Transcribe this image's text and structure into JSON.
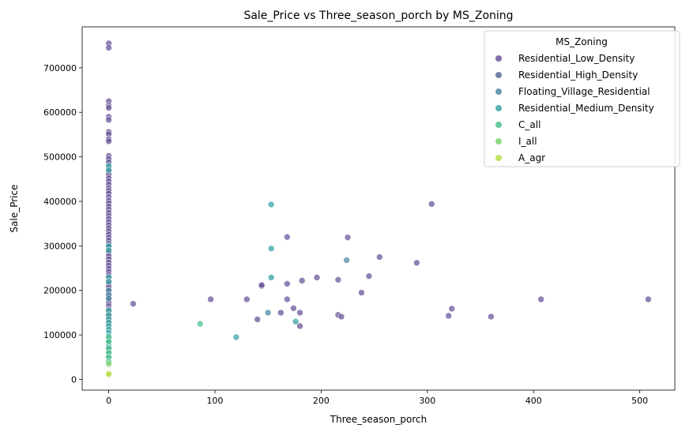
{
  "chart_data": {
    "type": "scatter",
    "title": "Sale_Price vs Three_season_porch by MS_Zoning",
    "xlabel": "Three_season_porch",
    "ylabel": "Sale_Price",
    "xlim": [
      -25,
      533
    ],
    "ylim": [
      -24000,
      792000
    ],
    "xticks": [
      0,
      100,
      200,
      300,
      400,
      500
    ],
    "yticks": [
      0,
      100000,
      200000,
      300000,
      400000,
      500000,
      600000,
      700000
    ],
    "grid": false,
    "legend": {
      "title": "MS_Zoning",
      "position": "top-right"
    },
    "series": [
      {
        "name": "Residential_Low_Density",
        "color": "#6b5599",
        "points": [
          [
            0,
            755000
          ],
          [
            0,
            745000
          ],
          [
            0,
            625000
          ],
          [
            0,
            615000
          ],
          [
            0,
            610000
          ],
          [
            0,
            590000
          ],
          [
            0,
            583000
          ],
          [
            0,
            556000
          ],
          [
            0,
            551000
          ],
          [
            0,
            540000
          ],
          [
            0,
            535000
          ],
          [
            0,
            502000
          ],
          [
            0,
            495000
          ],
          [
            0,
            488000
          ],
          [
            0,
            475000
          ],
          [
            0,
            466000
          ],
          [
            0,
            460000
          ],
          [
            0,
            452000
          ],
          [
            0,
            445000
          ],
          [
            0,
            438000
          ],
          [
            0,
            430000
          ],
          [
            0,
            424000
          ],
          [
            0,
            418000
          ],
          [
            0,
            410000
          ],
          [
            0,
            402000
          ],
          [
            0,
            396000
          ],
          [
            0,
            389000
          ],
          [
            0,
            382000
          ],
          [
            0,
            375000
          ],
          [
            0,
            368000
          ],
          [
            0,
            361000
          ],
          [
            0,
            354000
          ],
          [
            0,
            347000
          ],
          [
            0,
            340000
          ],
          [
            0,
            333000
          ],
          [
            0,
            326000
          ],
          [
            0,
            319000
          ],
          [
            0,
            312000
          ],
          [
            0,
            305000
          ],
          [
            0,
            298000
          ],
          [
            0,
            291000
          ],
          [
            0,
            284000
          ],
          [
            0,
            277000
          ],
          [
            0,
            270000
          ],
          [
            0,
            263000
          ],
          [
            0,
            256000
          ],
          [
            0,
            249000
          ],
          [
            0,
            242000
          ],
          [
            0,
            235000
          ],
          [
            0,
            228000
          ],
          [
            0,
            221000
          ],
          [
            0,
            214000
          ],
          [
            0,
            207000
          ],
          [
            0,
            200000
          ],
          [
            0,
            193000
          ],
          [
            0,
            186000
          ],
          [
            0,
            179000
          ],
          [
            0,
            172000
          ],
          [
            0,
            165000
          ],
          [
            0,
            158000
          ],
          [
            0,
            151000
          ],
          [
            0,
            144000
          ],
          [
            0,
            137000
          ],
          [
            0,
            130000
          ],
          [
            23,
            170000
          ],
          [
            96,
            180000
          ],
          [
            130,
            180000
          ],
          [
            140,
            135000
          ],
          [
            144,
            210000
          ],
          [
            144,
            212000
          ],
          [
            162,
            150000
          ],
          [
            168,
            320000
          ],
          [
            168,
            215000
          ],
          [
            168,
            180000
          ],
          [
            174,
            160000
          ],
          [
            180,
            150000
          ],
          [
            180,
            120000
          ],
          [
            182,
            222000
          ],
          [
            196,
            229000
          ],
          [
            216,
            224000
          ],
          [
            216,
            145000
          ],
          [
            219,
            141000
          ],
          [
            225,
            319000
          ],
          [
            245,
            232000
          ],
          [
            238,
            195000
          ],
          [
            255,
            275000
          ],
          [
            290,
            262000
          ],
          [
            304,
            394000
          ],
          [
            320,
            143000
          ],
          [
            323,
            159000
          ],
          [
            360,
            141000
          ],
          [
            407,
            180000
          ],
          [
            508,
            180000
          ]
        ]
      },
      {
        "name": "Residential_High_Density",
        "color": "#5a6d98",
        "points": [
          [
            0,
            140000
          ],
          [
            0,
            125000
          ]
        ]
      },
      {
        "name": "Floating_Village_Residential",
        "color": "#4d8aa6",
        "points": [
          [
            0,
            200000
          ],
          [
            0,
            190000
          ],
          [
            0,
            182000
          ],
          [
            224,
            268000
          ],
          [
            150,
            150000
          ]
        ]
      },
      {
        "name": "Residential_Medium_Density",
        "color": "#3aa3a3",
        "points": [
          [
            0,
            480000
          ],
          [
            0,
            470000
          ],
          [
            0,
            300000
          ],
          [
            0,
            290000
          ],
          [
            0,
            230000
          ],
          [
            0,
            220000
          ],
          [
            0,
            155000
          ],
          [
            0,
            145000
          ],
          [
            0,
            135000
          ],
          [
            0,
            128000
          ],
          [
            0,
            120000
          ],
          [
            0,
            112000
          ],
          [
            0,
            105000
          ],
          [
            0,
            98000
          ],
          [
            0,
            90000
          ],
          [
            0,
            82000
          ],
          [
            0,
            75000
          ],
          [
            0,
            68000
          ],
          [
            0,
            60000
          ],
          [
            0,
            52000
          ],
          [
            153,
            393000
          ],
          [
            153,
            294000
          ],
          [
            153,
            229000
          ],
          [
            120,
            95000
          ],
          [
            176,
            130000
          ]
        ]
      },
      {
        "name": "C_all",
        "color": "#4fc08d",
        "points": [
          [
            0,
            95000
          ],
          [
            0,
            85000
          ],
          [
            0,
            70000
          ],
          [
            0,
            60000
          ],
          [
            0,
            50000
          ],
          [
            0,
            40000
          ],
          [
            86,
            125000
          ]
        ]
      },
      {
        "name": "I_all",
        "color": "#7dd36a",
        "points": [
          [
            0,
            35000
          ]
        ]
      },
      {
        "name": "A_agr",
        "color": "#b9de4e",
        "points": [
          [
            0,
            13000
          ],
          [
            0,
            12000
          ]
        ]
      }
    ]
  }
}
